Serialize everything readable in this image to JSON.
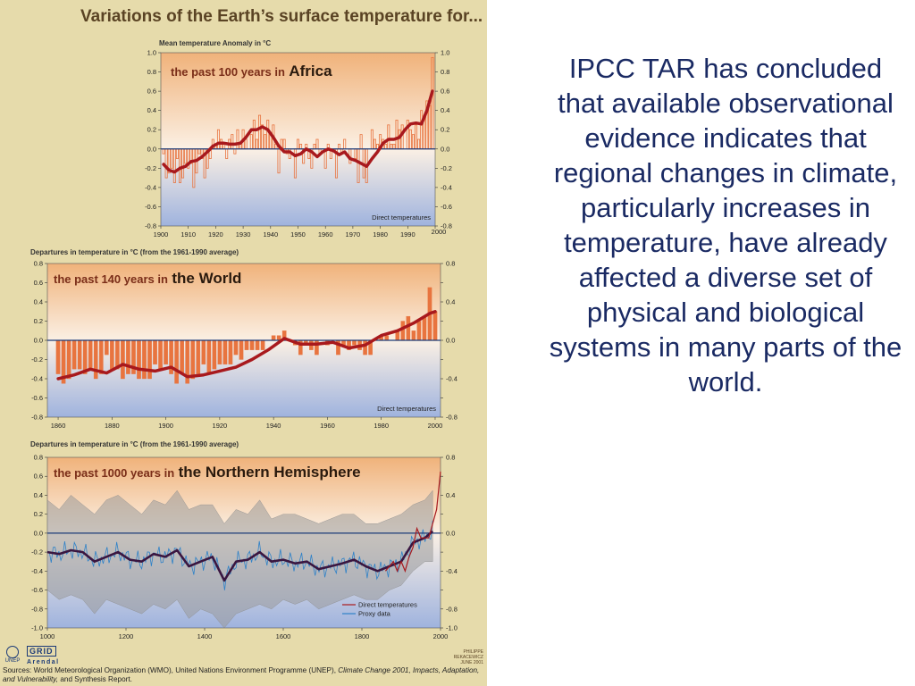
{
  "poster": {
    "title": "Variations of the Earth’s surface temperature for...",
    "sources_prefix": "Sources: World Meteorological Organization (WMO), United Nations Environment Programme (UNEP), ",
    "sources_italic": "Climate Change 2001, Impacts, Adaptation, and Vulnerability,",
    "sources_suffix": " and Synthesis Report.",
    "logo_unep": "UNEP",
    "logo_grid_top": "GRID",
    "logo_grid_bottom": "Arendal",
    "stamp": "PHILIPPE REKACEWICZ JUNE 2001",
    "colors": {
      "background": "#e6dbab",
      "warm_band": "#f0b27a",
      "cool_band": "#9fb3de",
      "trend": "#a8191d",
      "bars": "#e8743f",
      "zero_line": "#1b3a78",
      "proxy": "#2f82c8",
      "range": "#9a9a9a",
      "nh_trend": "#3a1640"
    }
  },
  "right_text": "IPCC TAR has concluded that available observational evidence indicates that regional changes in climate, particularly increases in temperature, have already affected a diverse set of physical and biological systems in many parts of the world.",
  "chart_data": [
    {
      "type": "bar",
      "label_small": "the past 100 years in",
      "label_big": "Africa",
      "axis_caption": "Mean temperature Anomaly in °C",
      "legend": [
        "Direct temperatures"
      ],
      "x_ticks": [
        1900,
        1910,
        1920,
        1930,
        1940,
        1950,
        1960,
        1970,
        1980,
        1990,
        2000
      ],
      "y_ticks": [
        1.0,
        0.8,
        0.6,
        0.4,
        0.2,
        0.0,
        -0.2,
        -0.4,
        -0.6,
        -0.8
      ],
      "y_tick_labels": [
        "1.0",
        "0.8",
        "0.6",
        "0.4",
        "0.2",
        "0.0",
        "-0.2",
        "-0.4",
        "-0.6",
        "-0.8"
      ],
      "right_tick_labels": [
        "1.0",
        "0.8",
        "0.6",
        "0.4",
        "0.2",
        "0.0",
        "-0.2",
        "-0.4",
        "-0.6",
        "-0.8"
      ],
      "xlim": [
        1900,
        2000
      ],
      "ylim": [
        -0.8,
        1.0
      ],
      "bar_x": [
        1901,
        1902,
        1903,
        1904,
        1905,
        1906,
        1907,
        1908,
        1909,
        1910,
        1911,
        1912,
        1913,
        1914,
        1915,
        1916,
        1917,
        1918,
        1919,
        1920,
        1921,
        1922,
        1923,
        1924,
        1925,
        1926,
        1927,
        1928,
        1929,
        1930,
        1931,
        1932,
        1933,
        1934,
        1935,
        1936,
        1937,
        1938,
        1939,
        1940,
        1941,
        1942,
        1943,
        1944,
        1945,
        1946,
        1947,
        1948,
        1949,
        1950,
        1951,
        1952,
        1953,
        1954,
        1955,
        1956,
        1957,
        1958,
        1959,
        1960,
        1961,
        1962,
        1963,
        1964,
        1965,
        1966,
        1967,
        1968,
        1969,
        1970,
        1971,
        1972,
        1973,
        1974,
        1975,
        1976,
        1977,
        1978,
        1979,
        1980,
        1981,
        1982,
        1983,
        1984,
        1985,
        1986,
        1987,
        1988,
        1989,
        1990,
        1991,
        1992,
        1993,
        1994,
        1995,
        1996,
        1997,
        1998,
        1999
      ],
      "bar_values": [
        -0.05,
        -0.3,
        -0.25,
        -0.2,
        -0.35,
        -0.1,
        -0.35,
        -0.3,
        -0.15,
        -0.2,
        -0.15,
        -0.4,
        -0.25,
        -0.05,
        -0.1,
        -0.3,
        -0.2,
        -0.1,
        0.1,
        0.05,
        0.2,
        0.1,
        0.05,
        -0.1,
        0.1,
        0.15,
        -0.05,
        0.2,
        0.05,
        0.2,
        0.1,
        0.0,
        0.15,
        0.3,
        0.1,
        0.35,
        0.25,
        0.15,
        0.3,
        0.15,
        0.25,
        0.05,
        -0.25,
        0.1,
        0.1,
        -0.05,
        -0.1,
        0.0,
        -0.3,
        0.1,
        0.05,
        -0.15,
        0.05,
        -0.1,
        -0.2,
        0.05,
        0.1,
        -0.05,
        0.0,
        -0.2,
        0.05,
        -0.1,
        0.0,
        -0.3,
        0.05,
        -0.05,
        0.1,
        0.0,
        -0.15,
        0.0,
        -0.1,
        -0.35,
        0.15,
        -0.3,
        -0.35,
        0.0,
        0.2,
        0.1,
        0.05,
        0.15,
        0.1,
        0.05,
        0.25,
        0.05,
        0.05,
        0.3,
        0.2,
        0.25,
        0.0,
        0.3,
        0.2,
        0.15,
        0.25,
        0.1,
        0.4,
        0.35,
        0.5,
        0.45,
        0.95
      ],
      "trend_x": [
        1901,
        1903,
        1905,
        1907,
        1909,
        1911,
        1913,
        1915,
        1917,
        1919,
        1921,
        1923,
        1925,
        1927,
        1929,
        1931,
        1933,
        1935,
        1937,
        1939,
        1941,
        1943,
        1945,
        1947,
        1949,
        1951,
        1953,
        1955,
        1957,
        1959,
        1961,
        1963,
        1965,
        1967,
        1969,
        1971,
        1973,
        1975,
        1977,
        1979,
        1981,
        1983,
        1985,
        1987,
        1989,
        1991,
        1993,
        1995,
        1997,
        1999
      ],
      "trend_values": [
        -0.16,
        -0.22,
        -0.24,
        -0.2,
        -0.18,
        -0.13,
        -0.12,
        -0.08,
        -0.03,
        0.03,
        0.06,
        0.06,
        0.05,
        0.05,
        0.06,
        0.12,
        0.2,
        0.2,
        0.23,
        0.2,
        0.12,
        0.03,
        -0.03,
        -0.03,
        -0.07,
        -0.05,
        0.0,
        -0.03,
        -0.08,
        -0.03,
        0.0,
        -0.02,
        -0.06,
        -0.03,
        -0.1,
        -0.12,
        -0.15,
        -0.18,
        -0.1,
        -0.03,
        0.06,
        0.1,
        0.1,
        0.12,
        0.2,
        0.26,
        0.27,
        0.26,
        0.4,
        0.6
      ]
    },
    {
      "type": "bar",
      "label_small": "the past 140 years in",
      "label_big": "the World",
      "axis_caption": "Departures in temperature in °C (from the 1961-1990 average)",
      "legend": [
        "Direct temperatures"
      ],
      "x_ticks": [
        1860,
        1880,
        1900,
        1920,
        1940,
        1960,
        1980,
        2000
      ],
      "y_ticks": [
        0.8,
        0.6,
        0.4,
        0.2,
        0.0,
        -0.2,
        -0.4,
        -0.6,
        -0.8
      ],
      "y_tick_labels": [
        "0.8",
        "0.6",
        "0.4",
        "0.2",
        "0.0",
        "-0.2",
        "-0.4",
        "-0.6",
        "-0.8"
      ],
      "right_tick_labels": [
        "0.8",
        "",
        "0.4",
        "",
        "0.0",
        "",
        "-0.4",
        "",
        "-0.8"
      ],
      "xlim": [
        1856,
        2002
      ],
      "ylim": [
        -0.8,
        0.8
      ],
      "bar_x": [
        1860,
        1862,
        1864,
        1866,
        1868,
        1870,
        1872,
        1874,
        1876,
        1878,
        1880,
        1882,
        1884,
        1886,
        1888,
        1890,
        1892,
        1894,
        1896,
        1898,
        1900,
        1902,
        1904,
        1906,
        1908,
        1910,
        1912,
        1914,
        1916,
        1918,
        1920,
        1922,
        1924,
        1926,
        1928,
        1930,
        1932,
        1934,
        1936,
        1938,
        1940,
        1942,
        1944,
        1946,
        1948,
        1950,
        1952,
        1954,
        1956,
        1958,
        1960,
        1962,
        1964,
        1966,
        1968,
        1970,
        1972,
        1974,
        1976,
        1978,
        1980,
        1982,
        1984,
        1986,
        1988,
        1990,
        1992,
        1994,
        1996,
        1998,
        2000
      ],
      "bar_values": [
        -0.35,
        -0.45,
        -0.4,
        -0.3,
        -0.3,
        -0.35,
        -0.3,
        -0.4,
        -0.35,
        -0.15,
        -0.3,
        -0.3,
        -0.4,
        -0.35,
        -0.35,
        -0.4,
        -0.4,
        -0.4,
        -0.25,
        -0.3,
        -0.25,
        -0.35,
        -0.45,
        -0.35,
        -0.45,
        -0.4,
        -0.35,
        -0.25,
        -0.35,
        -0.3,
        -0.25,
        -0.25,
        -0.25,
        -0.15,
        -0.2,
        -0.1,
        -0.1,
        -0.1,
        -0.1,
        0.0,
        0.05,
        0.05,
        0.1,
        0.0,
        -0.05,
        -0.15,
        -0.05,
        -0.1,
        -0.15,
        0.0,
        -0.05,
        0.0,
        -0.15,
        -0.05,
        -0.1,
        -0.05,
        -0.1,
        -0.15,
        -0.15,
        0.0,
        0.05,
        0.05,
        0.0,
        0.1,
        0.2,
        0.25,
        0.1,
        0.2,
        0.25,
        0.55,
        0.3
      ],
      "trend_x": [
        1860,
        1866,
        1872,
        1878,
        1884,
        1890,
        1896,
        1902,
        1908,
        1914,
        1920,
        1926,
        1932,
        1938,
        1944,
        1950,
        1956,
        1962,
        1968,
        1974,
        1980,
        1986,
        1992,
        1998,
        2000
      ],
      "trend_values": [
        -0.4,
        -0.36,
        -0.3,
        -0.34,
        -0.25,
        -0.3,
        -0.32,
        -0.28,
        -0.38,
        -0.36,
        -0.32,
        -0.28,
        -0.2,
        -0.1,
        0.02,
        -0.04,
        -0.04,
        -0.02,
        -0.08,
        -0.05,
        0.05,
        0.1,
        0.18,
        0.28,
        0.3
      ]
    },
    {
      "type": "line",
      "label_small": "the past 1000 years in",
      "label_big": "the Northern Hemisphere",
      "axis_caption": "Departures in temperature in °C (from the 1961-1990 average)",
      "legend": [
        "Direct temperatures",
        "Proxy data"
      ],
      "x_ticks": [
        1000,
        1200,
        1400,
        1600,
        1800,
        2000
      ],
      "y_ticks": [
        0.8,
        0.6,
        0.4,
        0.2,
        0.0,
        -0.2,
        -0.4,
        -0.6,
        -0.8,
        -1.0
      ],
      "y_tick_labels": [
        "0.8",
        "0.6",
        "0.4",
        "0.2",
        "0.0",
        "-0.2",
        "-0.4",
        "-0.6",
        "-0.8",
        "-1.0"
      ],
      "right_tick_labels": [
        "0.8",
        "",
        "0.4",
        "",
        "0.0",
        "",
        "-0.4",
        "",
        "-0.8",
        "-1.0"
      ],
      "xlim": [
        1000,
        2000
      ],
      "ylim": [
        -1.0,
        0.8
      ],
      "proxy_trend_x": [
        1000,
        1030,
        1060,
        1090,
        1120,
        1150,
        1180,
        1210,
        1240,
        1270,
        1300,
        1330,
        1360,
        1390,
        1420,
        1450,
        1480,
        1510,
        1540,
        1570,
        1600,
        1630,
        1660,
        1690,
        1720,
        1750,
        1780,
        1810,
        1840,
        1870,
        1900,
        1930,
        1960,
        1980
      ],
      "proxy_trend_values": [
        -0.2,
        -0.22,
        -0.18,
        -0.2,
        -0.3,
        -0.25,
        -0.2,
        -0.28,
        -0.3,
        -0.22,
        -0.25,
        -0.18,
        -0.35,
        -0.3,
        -0.25,
        -0.5,
        -0.3,
        -0.28,
        -0.2,
        -0.3,
        -0.28,
        -0.32,
        -0.3,
        -0.38,
        -0.35,
        -0.32,
        -0.28,
        -0.35,
        -0.4,
        -0.35,
        -0.3,
        -0.1,
        -0.05,
        0.02
      ],
      "range_upper": [
        0.35,
        0.25,
        0.4,
        0.3,
        0.2,
        0.35,
        0.4,
        0.3,
        0.2,
        0.35,
        0.3,
        0.45,
        0.25,
        0.3,
        0.3,
        0.1,
        0.25,
        0.2,
        0.35,
        0.15,
        0.2,
        0.2,
        0.15,
        0.1,
        0.15,
        0.2,
        0.2,
        0.1,
        0.1,
        0.15,
        0.2,
        0.3,
        0.35,
        0.45
      ],
      "range_lower": [
        -0.6,
        -0.7,
        -0.65,
        -0.7,
        -0.85,
        -0.7,
        -0.75,
        -0.8,
        -0.85,
        -0.75,
        -0.8,
        -0.7,
        -0.9,
        -0.8,
        -0.85,
        -1.0,
        -0.85,
        -0.8,
        -0.75,
        -0.8,
        -0.7,
        -0.75,
        -0.7,
        -0.8,
        -0.75,
        -0.7,
        -0.65,
        -0.7,
        -0.7,
        -0.6,
        -0.55,
        -0.4,
        -0.3,
        -0.3
      ],
      "direct_x": [
        1860,
        1870,
        1880,
        1890,
        1900,
        1910,
        1920,
        1930,
        1940,
        1950,
        1960,
        1970,
        1980,
        1990,
        2000
      ],
      "direct_values": [
        -0.4,
        -0.35,
        -0.3,
        -0.4,
        -0.3,
        -0.4,
        -0.25,
        -0.15,
        0.05,
        -0.05,
        -0.05,
        -0.05,
        0.1,
        0.25,
        0.65
      ]
    }
  ]
}
